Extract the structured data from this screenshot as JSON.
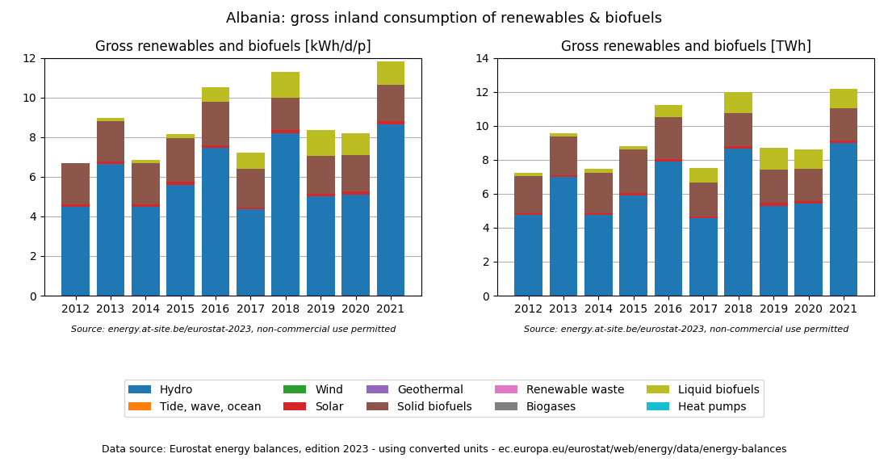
{
  "title": "Albania: gross inland consumption of renewables & biofuels",
  "annotations": [
    "Data source: Eurostat energy balances, edition 2023 - using converted units - ec.europa.eu/eurostat/web/energy/data/energy-balances"
  ],
  "legend": "lower center",
  "chart_data": [
    {
      "type": "bar",
      "title": "Gross renewables and biofuels [kWh/d/p]",
      "annotations": [
        "Source: energy.at-site.be/eurostat-2023, non-commercial use permitted"
      ],
      "categories": [
        "2012",
        "2013",
        "2014",
        "2015",
        "2016",
        "2017",
        "2018",
        "2019",
        "2020",
        "2021"
      ],
      "stacked": true,
      "grid": true,
      "ylim": [
        0,
        12
      ],
      "yticks": [
        0,
        2,
        4,
        6,
        8,
        10,
        12
      ],
      "series": [
        {
          "name": "Hydro",
          "values": [
            4.5,
            6.65,
            4.5,
            5.6,
            7.45,
            4.35,
            8.2,
            5.0,
            5.1,
            8.65
          ]
        },
        {
          "name": "Tide, wave, ocean",
          "values": [
            0.0,
            0.0,
            0.0,
            0.0,
            0.0,
            0.0,
            0.0,
            0.0,
            0.0,
            0.0
          ]
        },
        {
          "name": "Wind",
          "values": [
            0.0,
            0.0,
            0.0,
            0.0,
            0.0,
            0.0,
            0.0,
            0.0,
            0.0,
            0.0
          ]
        },
        {
          "name": "Solar",
          "values": [
            0.1,
            0.1,
            0.1,
            0.15,
            0.15,
            0.1,
            0.15,
            0.15,
            0.15,
            0.15
          ]
        },
        {
          "name": "Geothermal",
          "values": [
            0.0,
            0.0,
            0.0,
            0.0,
            0.0,
            0.0,
            0.0,
            0.0,
            0.0,
            0.0
          ]
        },
        {
          "name": "Solid biofuels",
          "values": [
            2.1,
            2.05,
            2.1,
            2.2,
            2.2,
            1.95,
            1.65,
            1.9,
            1.85,
            1.85
          ]
        },
        {
          "name": "Renewable waste",
          "values": [
            0.0,
            0.0,
            0.0,
            0.0,
            0.0,
            0.0,
            0.0,
            0.0,
            0.0,
            0.0
          ]
        },
        {
          "name": "Biogases",
          "values": [
            0.0,
            0.0,
            0.0,
            0.0,
            0.0,
            0.0,
            0.0,
            0.0,
            0.0,
            0.0
          ]
        },
        {
          "name": "Liquid biofuels",
          "values": [
            0.0,
            0.15,
            0.15,
            0.2,
            0.7,
            0.8,
            1.3,
            1.3,
            1.1,
            1.15
          ]
        },
        {
          "name": "Heat pumps",
          "values": [
            0.0,
            0.0,
            0.0,
            0.0,
            0.0,
            0.0,
            0.0,
            0.0,
            0.0,
            0.0
          ]
        }
      ]
    },
    {
      "type": "bar",
      "title": "Gross renewables and biofuels [TWh]",
      "annotations": [
        "Source: energy.at-site.be/eurostat-2023, non-commercial use permitted"
      ],
      "categories": [
        "2012",
        "2013",
        "2014",
        "2015",
        "2016",
        "2017",
        "2018",
        "2019",
        "2020",
        "2021"
      ],
      "stacked": true,
      "grid": true,
      "ylim": [
        0,
        14
      ],
      "yticks": [
        0,
        2,
        4,
        6,
        8,
        10,
        12,
        14
      ],
      "series": [
        {
          "name": "Hydro",
          "values": [
            4.75,
            7.0,
            4.75,
            5.9,
            7.9,
            4.55,
            8.65,
            5.3,
            5.4,
            9.0
          ]
        },
        {
          "name": "Tide, wave, ocean",
          "values": [
            0.0,
            0.0,
            0.0,
            0.0,
            0.0,
            0.0,
            0.0,
            0.0,
            0.0,
            0.0
          ]
        },
        {
          "name": "Wind",
          "values": [
            0.0,
            0.0,
            0.0,
            0.0,
            0.0,
            0.0,
            0.0,
            0.0,
            0.0,
            0.0
          ]
        },
        {
          "name": "Solar",
          "values": [
            0.1,
            0.1,
            0.1,
            0.15,
            0.15,
            0.1,
            0.15,
            0.15,
            0.15,
            0.15
          ]
        },
        {
          "name": "Geothermal",
          "values": [
            0.0,
            0.0,
            0.0,
            0.0,
            0.0,
            0.0,
            0.0,
            0.0,
            0.0,
            0.0
          ]
        },
        {
          "name": "Solid biofuels",
          "values": [
            2.2,
            2.25,
            2.4,
            2.55,
            2.45,
            2.0,
            1.95,
            1.95,
            1.9,
            1.9
          ]
        },
        {
          "name": "Renewable waste",
          "values": [
            0.0,
            0.0,
            0.0,
            0.0,
            0.0,
            0.0,
            0.0,
            0.0,
            0.0,
            0.0
          ]
        },
        {
          "name": "Biogases",
          "values": [
            0.0,
            0.0,
            0.0,
            0.0,
            0.0,
            0.0,
            0.0,
            0.0,
            0.0,
            0.0
          ]
        },
        {
          "name": "Liquid biofuels",
          "values": [
            0.2,
            0.2,
            0.2,
            0.2,
            0.7,
            0.85,
            1.25,
            1.3,
            1.15,
            1.1
          ]
        },
        {
          "name": "Heat pumps",
          "values": [
            0.0,
            0.0,
            0.0,
            0.0,
            0.0,
            0.0,
            0.0,
            0.0,
            0.0,
            0.0
          ]
        }
      ]
    }
  ]
}
